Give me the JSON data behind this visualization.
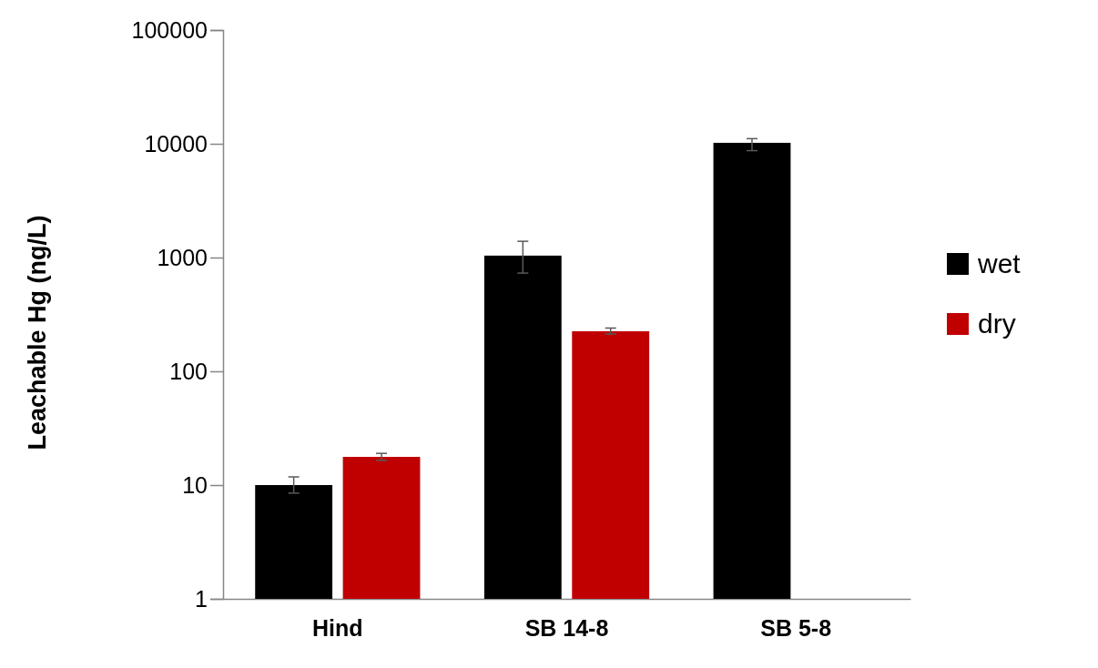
{
  "chart_data": {
    "type": "bar",
    "ylabel": "Leachable Hg (ng/L)",
    "categories": [
      "Hind",
      "SB 14-8",
      "SB 5-8"
    ],
    "series": [
      {
        "name": "wet",
        "color": "#000000",
        "values": [
          10,
          1040,
          10200
        ],
        "errors": [
          [
            8.5,
            11.8
          ],
          [
            730,
            1390
          ],
          [
            8700,
            11100
          ]
        ]
      },
      {
        "name": "dry",
        "color": "#c00000",
        "values": [
          17.7,
          225,
          null
        ],
        "errors": [
          [
            16.5,
            19
          ],
          [
            213,
            240
          ],
          null
        ]
      }
    ],
    "log": true,
    "ylim": [
      1,
      100000
    ],
    "yticks": [
      1,
      10,
      100,
      1000,
      10000,
      100000
    ],
    "legend": "right",
    "grid": false
  }
}
